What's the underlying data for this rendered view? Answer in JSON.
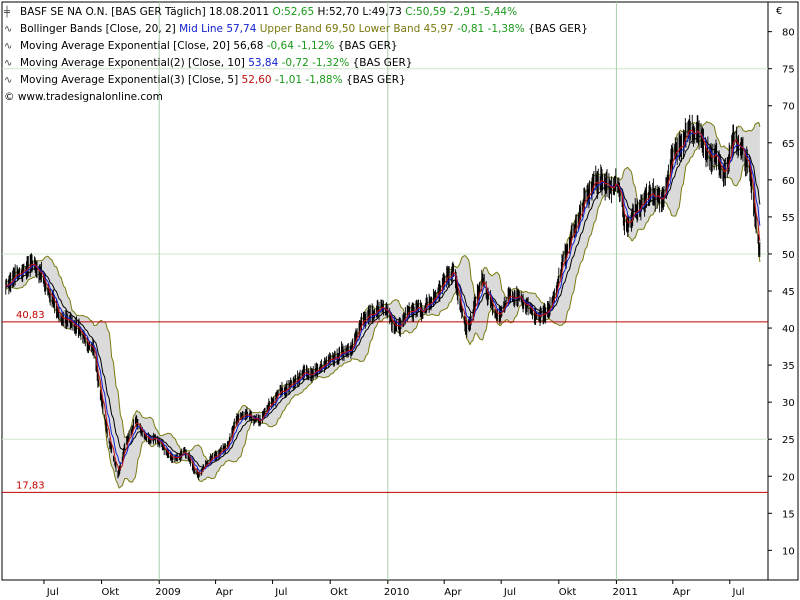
{
  "legend": {
    "line1": {
      "name": "BASF SE NA O.N. [BAS GER  Täglich] 18.08.2011",
      "open": "O:52,65",
      "high": "H:52,70",
      "low": "L:49,73",
      "close": "C:50,59 -2,91 -5,44%"
    },
    "line2": {
      "name": "Bollinger Bands [Close, 20, 2]",
      "mid": "Mid Line 57,74",
      "upper": "Upper Band 69,50",
      "lower": "Lower Band 45,97",
      "chg": "-0,81 -1,38%",
      "tag": "{BAS GER}"
    },
    "line3": {
      "name": "Moving Average Exponential [Close, 20]",
      "val": "56,68",
      "chg": "-0,64 -1,12%",
      "tag": "{BAS GER}"
    },
    "line4": {
      "name": "Moving Average Exponential(2) [Close, 10]",
      "val": "53,84",
      "chg": "-0,72 -1,32%",
      "tag": "{BAS GER}"
    },
    "line5": {
      "name": "Moving Average Exponential(3) [Close, 5]",
      "val": "52,60",
      "chg": "-1,01 -1,88%",
      "tag": "{BAS GER}"
    },
    "copyright": "© www.tradesignalonline.com"
  },
  "currency_label": "€",
  "colors": {
    "band_fill": "#d4d4d4",
    "band_edge": "#7a7a10",
    "mid": "#1020d0",
    "ema20": "#000000",
    "ema10": "#1020d0",
    "ema5": "#c01010",
    "hline": "#c00000",
    "grid_h": "#cfe6cf",
    "grid_v": "#a8d0a8"
  },
  "chart_data": {
    "type": "line",
    "title": "BASF SE NA O.N. [BAS GER  Täglich] 18.08.2011",
    "y_range": [
      6,
      84
    ],
    "y_ticks": [
      10,
      15,
      20,
      25,
      30,
      35,
      40,
      45,
      50,
      55,
      60,
      65,
      70,
      75,
      80
    ],
    "y_axis_position": "right",
    "x_ticks": [
      "Jul",
      "Okt",
      "2009",
      "Apr",
      "Jul",
      "Okt",
      "2010",
      "Apr",
      "Jul",
      "Okt",
      "2011",
      "Apr",
      "Jul"
    ],
    "x_tick_dates": [
      "2008-07",
      "2008-10",
      "2009-01",
      "2009-04",
      "2009-07",
      "2009-10",
      "2010-01",
      "2010-04",
      "2010-07",
      "2010-10",
      "2011-01",
      "2011-04",
      "2011-07"
    ],
    "x_range": [
      "2008-04-25",
      "2011-08-31"
    ],
    "grid": true,
    "horizontal_lines": [
      {
        "value": 40.83,
        "label": "40,83"
      },
      {
        "value": 17.83,
        "label": "17,83"
      }
    ],
    "price_series": {
      "name": "BASF SE NA O.N.",
      "dates": [
        "2008-05-01",
        "2008-06-01",
        "2008-06-20",
        "2008-07-15",
        "2008-08-01",
        "2008-09-01",
        "2008-09-20",
        "2008-10-10",
        "2008-10-27",
        "2008-11-10",
        "2008-11-25",
        "2008-12-10",
        "2008-12-31",
        "2009-01-20",
        "2009-02-10",
        "2009-03-05",
        "2009-03-20",
        "2009-04-15",
        "2009-05-10",
        "2009-06-10",
        "2009-07-10",
        "2009-08-05",
        "2009-09-01",
        "2009-10-01",
        "2009-10-25",
        "2009-11-20",
        "2009-12-20",
        "2010-01-15",
        "2010-02-08",
        "2010-03-10",
        "2010-04-15",
        "2010-05-07",
        "2010-06-01",
        "2010-06-25",
        "2010-07-15",
        "2010-08-15",
        "2010-09-10",
        "2010-10-01",
        "2010-11-01",
        "2010-12-01",
        "2010-12-31",
        "2011-01-15",
        "2011-02-10",
        "2011-03-15",
        "2011-04-10",
        "2011-05-01",
        "2011-06-01",
        "2011-06-25",
        "2011-07-10",
        "2011-08-01",
        "2011-08-18"
      ],
      "values": [
        46,
        47.5,
        48,
        44,
        41,
        39.5,
        36,
        26,
        20,
        25,
        27,
        25,
        24.5,
        22.5,
        23,
        20.5,
        22,
        24,
        28,
        27,
        31,
        33,
        34,
        35,
        37,
        40,
        44,
        40,
        41.5,
        43,
        48,
        40.5,
        46,
        41,
        44,
        43,
        41,
        47,
        55,
        60,
        59.5,
        55,
        56.5,
        57,
        65,
        68,
        64,
        62,
        66,
        61,
        50.6
      ]
    },
    "series": [
      {
        "name": "Moving Average Exponential [Close, 20]",
        "role": "ema20"
      },
      {
        "name": "Moving Average Exponential(2) [Close, 10]",
        "role": "ema10"
      },
      {
        "name": "Moving Average Exponential(3) [Close, 5]",
        "role": "ema5"
      },
      {
        "name": "Bollinger Bands [Close, 20, 2]",
        "role": "bollinger"
      }
    ]
  }
}
